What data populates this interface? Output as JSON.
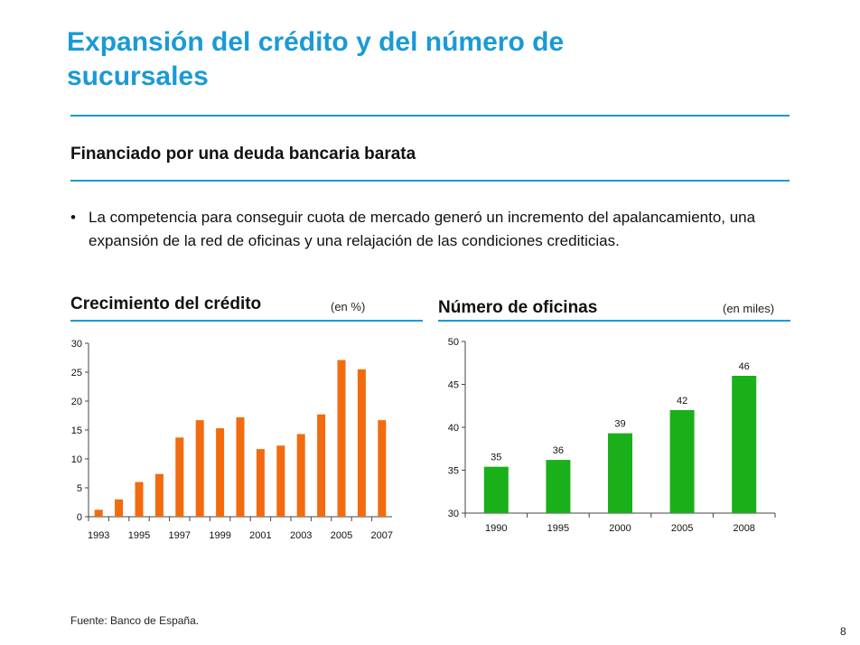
{
  "title": "Expansión del crédito y del número de sucursales",
  "subtitle": "Financiado por una deuda bancaria barata",
  "bullet": "La competencia para conseguir cuota de mercado generó un incremento del apalancamiento, una expansión de la red de oficinas y una relajación de las condiciones crediticias.",
  "bullet_marker": "•",
  "chart_left": {
    "title": "Crecimiento del crédito",
    "unit": "(en %)"
  },
  "chart_right": {
    "title": "Número de oficinas",
    "unit": "(en miles)"
  },
  "source": "Fuente: Banco de España.",
  "page_number": "8",
  "colors": {
    "accent": "#1a9ad6",
    "bar_orange": "#f26b0f",
    "bar_green": "#19b01a"
  },
  "chart_data": [
    {
      "type": "bar",
      "categories": [
        "1993",
        "1994",
        "1995",
        "1996",
        "1997",
        "1998",
        "1999",
        "2000",
        "2001",
        "2002",
        "2003",
        "2004",
        "2005",
        "2006",
        "2007"
      ],
      "tick_labels": [
        "1993",
        "1995",
        "1997",
        "1999",
        "2001",
        "2003",
        "2005",
        "2007"
      ],
      "values": [
        1.2,
        3.0,
        6.0,
        7.4,
        13.7,
        16.7,
        15.3,
        17.2,
        11.7,
        12.3,
        14.3,
        17.7,
        27.1,
        25.5,
        16.7
      ],
      "ylim": [
        0,
        30
      ],
      "yticks": [
        "0",
        "5",
        "10",
        "15",
        "20",
        "25",
        "30"
      ],
      "title": "Crecimiento del crédito",
      "ylabel": "(en %)",
      "xlabel": "",
      "grid": false
    },
    {
      "type": "bar",
      "categories": [
        "1990",
        "1995",
        "2000",
        "2005",
        "2008"
      ],
      "values": [
        35.4,
        36.2,
        39.3,
        42.0,
        46.0
      ],
      "data_labels": [
        "35",
        "36",
        "39",
        "42",
        "46"
      ],
      "ylim": [
        30,
        50
      ],
      "yticks": [
        "30",
        "35",
        "40",
        "45",
        "50"
      ],
      "title": "Número de oficinas",
      "ylabel": "(en miles)",
      "xlabel": "",
      "grid": false
    }
  ]
}
